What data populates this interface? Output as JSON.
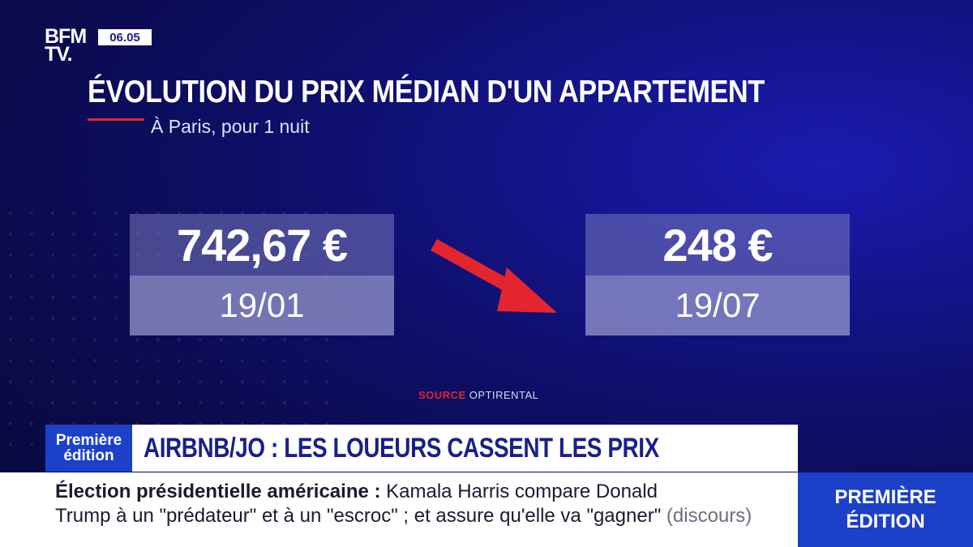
{
  "channel": {
    "logo_line1": "BFM",
    "logo_line2": "TV.",
    "time": "06.05"
  },
  "chart_data": {
    "type": "table",
    "title": "ÉVOLUTION DU PRIX MÉDIAN D'UN APPARTEMENT",
    "subtitle": "À Paris, pour 1 nuit",
    "cards": [
      {
        "value": "742,67 €",
        "date": "19/01"
      },
      {
        "value": "248 €",
        "date": "19/07"
      }
    ],
    "values": [
      742.67,
      248
    ],
    "categories": [
      "19/01",
      "19/07"
    ],
    "source_label": "SOURCE",
    "source_value": "OPTIRENTAL",
    "arrow_color": "#e3262e"
  },
  "banner": {
    "show_line1": "Première",
    "show_line2": "édition",
    "headline": "AIRBNB/JO : LES LOUEURS CASSENT LES PRIX"
  },
  "ticker": {
    "bold": "Élection présidentielle américaine :",
    "text1": " Kamala Harris compare Donald",
    "text2": "Trump à un \"prédateur\" et à un \"escroc\" ; et assure qu'elle va \"gagner\"",
    "tag": "(discours)"
  },
  "side_badge": {
    "line1": "PREMIÈRE",
    "line2": "ÉDITION"
  },
  "colors": {
    "accent_red": "#e3262e",
    "brand_blue": "#1c40c8",
    "navy": "#0e0f6a"
  }
}
